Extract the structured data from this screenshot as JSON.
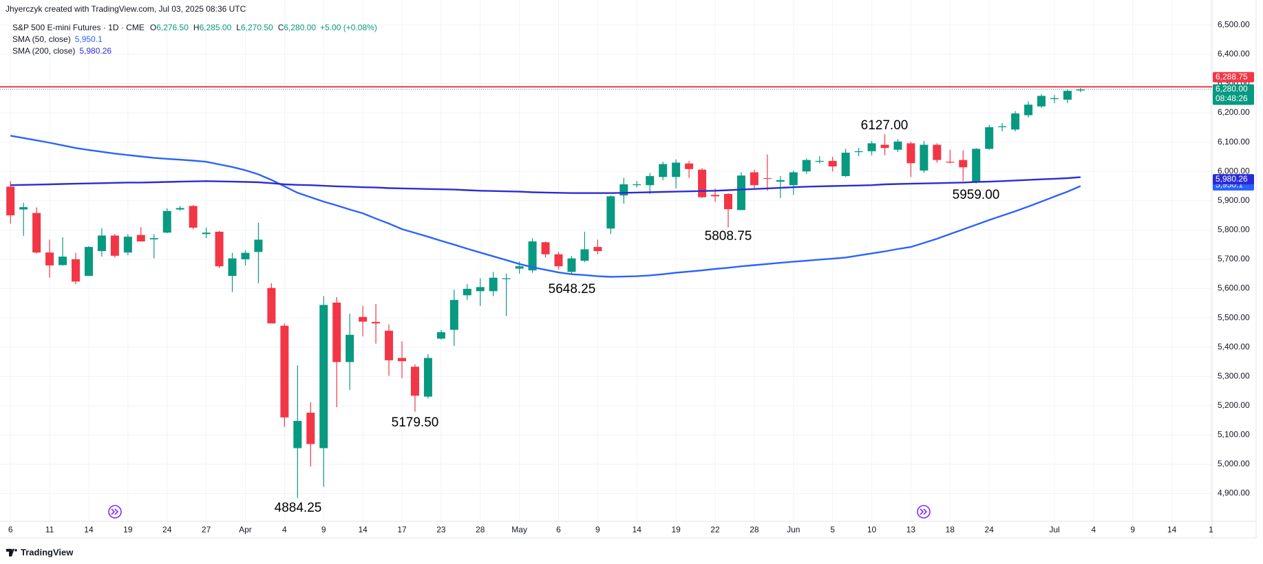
{
  "header": {
    "author": "Jhyerczyk created with TradingView.com, Jul 03, 2025 08:36 UTC"
  },
  "footer": {
    "brand": "TradingView"
  },
  "chart_data": {
    "type": "candlestick",
    "legend": {
      "symbol": "S&P 500 E-mini Futures · 1D · CME",
      "fields": [
        {
          "key": "O",
          "value": "6,276.50"
        },
        {
          "key": "H",
          "value": "6,285.00"
        },
        {
          "key": "L",
          "value": "6,270.50"
        },
        {
          "key": "C",
          "value": "6,280.00"
        }
      ],
      "change": "+5.00 (+0.08%)"
    },
    "up_color": "#089981",
    "down_color": "#f23645",
    "categories": [
      "6",
      null,
      null,
      "11",
      null,
      null,
      "14",
      null,
      null,
      "19",
      null,
      null,
      "24",
      null,
      null,
      "27",
      null,
      null,
      "Apr",
      null,
      null,
      "4",
      null,
      null,
      "9",
      null,
      null,
      "14",
      null,
      null,
      "17",
      null,
      null,
      "23",
      null,
      null,
      "28",
      null,
      null,
      "May",
      null,
      null,
      "6",
      null,
      null,
      "9",
      null,
      null,
      "14",
      null,
      null,
      "19",
      null,
      null,
      "22",
      null,
      null,
      "28",
      null,
      null,
      "Jun",
      null,
      null,
      "5",
      null,
      null,
      "10",
      null,
      null,
      "13",
      null,
      null,
      "18",
      null,
      null,
      "24",
      null,
      null,
      null,
      null,
      "Jul",
      null,
      null,
      "4",
      null,
      null,
      "9",
      null,
      null,
      "14",
      null,
      null,
      "1"
    ],
    "open": [
      5948,
      5870,
      5858,
      5723,
      5680,
      5700,
      5643,
      5728,
      5781,
      5723,
      5783,
      5768,
      5791,
      5870,
      5882,
      5786,
      5794,
      5643,
      5700,
      5725,
      5602,
      5473,
      5055,
      5176,
      5055,
      5552,
      5349,
      5503,
      5486,
      5456,
      5363,
      5333,
      5231,
      5429,
      5459,
      5577,
      5591,
      5591,
      5632,
      5668,
      5662,
      5758,
      5717,
      5657,
      5695,
      5742,
      5805,
      5918,
      5953,
      5953,
      5981,
      5981,
      6027,
      6006,
      5920,
      5923,
      5868,
      5997,
      5977,
      5965,
      5953,
      6000,
      6033,
      6036,
      5984,
      6066,
      6069,
      6091,
      6074,
      6096,
      6003,
      6091,
      6033,
      6039,
      5965,
      6077,
      6151,
      6143,
      6192,
      6222,
      6247,
      6245,
      6276.5,
      null,
      null,
      null,
      null,
      null,
      null,
      null,
      null,
      null,
      null
    ],
    "high": [
      5967,
      5893,
      5877,
      5767,
      5775,
      5722,
      5745,
      5806,
      5786,
      5786,
      5810,
      5786,
      5874,
      5882,
      5885,
      5808,
      5797,
      5722,
      5731,
      5825,
      5618,
      5481,
      5338,
      5212,
      5574,
      5571,
      5514,
      5541,
      5547,
      5478,
      5420,
      5341,
      5376,
      5459,
      5596,
      5615,
      5635,
      5657,
      5651,
      5692,
      5772,
      5761,
      5725,
      5711,
      5794,
      5767,
      5918,
      5978,
      5967,
      5995,
      6033,
      6041,
      6036,
      6011,
      5942,
      5926,
      5997,
      6006,
      6058,
      5984,
      6003,
      6044,
      6052,
      6050,
      6077,
      6080,
      6104,
      6127,
      6110,
      6102,
      6104,
      6096,
      6074,
      6072,
      6080,
      6159,
      6165,
      6206,
      6239,
      6264,
      6261,
      6280,
      6285,
      null,
      null,
      null,
      null,
      null,
      null,
      null,
      null,
      null,
      null
    ],
    "low": [
      5822,
      5780,
      5720,
      5637,
      5678,
      5615,
      5643,
      5709,
      5706,
      5714,
      5761,
      5703,
      5789,
      5866,
      5802,
      5772,
      5670,
      5588,
      5679,
      5618,
      5481,
      5127,
      4884.25,
      4992,
      4923,
      5195,
      5253,
      5437,
      5412,
      5302,
      5294,
      5179.5,
      5225,
      5426,
      5404,
      5561,
      5541,
      5574,
      5506,
      5651,
      5654,
      5706,
      5665,
      5648.25,
      5690,
      5717,
      5786,
      5890,
      5945,
      5923,
      5970,
      5942,
      5978,
      5909,
      5896,
      5808.75,
      5868,
      5937,
      5934,
      5909,
      5920,
      5992,
      6027,
      6000,
      5981,
      6052,
      6055,
      6055,
      6066,
      5981,
      5995,
      6030,
      6027,
      5967,
      5959,
      6074,
      6137,
      6137,
      6184,
      6217,
      6233,
      6233,
      6270.5,
      null,
      null,
      null,
      null,
      null,
      null,
      null,
      null,
      null,
      null
    ],
    "close": [
      5850,
      5878,
      5723,
      5679,
      5709,
      5624,
      5742,
      5781,
      5712,
      5777,
      5761,
      5772,
      5865,
      5875,
      5808,
      5791,
      5676,
      5703,
      5722,
      5767,
      5481,
      5160,
      5148,
      5069,
      5544,
      5349,
      5442,
      5487,
      5481,
      5355,
      5352,
      5234,
      5363,
      5451,
      5561,
      5599,
      5605,
      5637,
      5635,
      5676,
      5761,
      5717,
      5676,
      5703,
      5734,
      5728,
      5915,
      5956,
      5956,
      5984,
      6025,
      6030,
      6008,
      5912,
      5915,
      5871,
      5986,
      5953,
      5975,
      5970,
      5997,
      6039,
      6036,
      6017,
      6064,
      6069,
      6096,
      6080,
      6102,
      6028,
      6091,
      6039,
      6030,
      6014,
      6077,
      6151,
      6154,
      6198,
      6228,
      6258,
      6250,
      6275,
      6280,
      null,
      null,
      null,
      null,
      null,
      null,
      null,
      null,
      null,
      null
    ],
    "series": [
      {
        "name": "SMA (50, close)",
        "color": "#2962ff",
        "last_label": "5,950.1",
        "values": [
          6122,
          6114,
          6106,
          6098,
          6089,
          6080,
          6073,
          6067,
          6061,
          6056,
          6051,
          6046,
          6043,
          6040,
          6037,
          6033,
          6024,
          6015,
          6004,
          5990,
          5971,
          5949,
          5927,
          5912,
          5897,
          5884,
          5870,
          5857,
          5839,
          5822,
          5803,
          5790,
          5777,
          5763,
          5750,
          5736,
          5723,
          5710,
          5697,
          5684,
          5673,
          5664,
          5655,
          5649,
          5646,
          5642,
          5640,
          5641,
          5642,
          5645,
          5649,
          5654,
          5658,
          5662,
          5667,
          5671,
          5676,
          5680,
          5684,
          5688,
          5692,
          5695,
          5699,
          5702,
          5706,
          5713,
          5720,
          5727,
          5735,
          5742,
          5756,
          5770,
          5786,
          5802,
          5818,
          5834,
          5849,
          5864,
          5880,
          5897,
          5914,
          5931,
          5950.1,
          null,
          null,
          null,
          null,
          null,
          null,
          null,
          null,
          null,
          null
        ]
      },
      {
        "name": "SMA (200, close)",
        "color": "#2b2bd6",
        "last_label": "5,980.26",
        "values": [
          5953,
          5954,
          5955,
          5956,
          5957,
          5958,
          5959,
          5960,
          5961,
          5962,
          5962,
          5963,
          5964,
          5965,
          5966,
          5967,
          5966,
          5965,
          5964,
          5963,
          5960,
          5956,
          5954,
          5953,
          5951,
          5949,
          5948,
          5946,
          5945,
          5943,
          5942,
          5941,
          5940,
          5939,
          5938,
          5936,
          5934,
          5933,
          5932,
          5931,
          5929,
          5928,
          5927,
          5926,
          5926,
          5926,
          5926,
          5927,
          5928,
          5929,
          5930,
          5931,
          5932,
          5933,
          5934,
          5936,
          5938,
          5940,
          5942,
          5944,
          5946,
          5948,
          5949,
          5950,
          5951,
          5952,
          5953,
          5956,
          5957,
          5958,
          5959,
          5960,
          5961,
          5962,
          5964,
          5965,
          5967,
          5969,
          5971,
          5973,
          5975,
          5977,
          5980.26,
          null,
          null,
          null,
          null,
          null,
          null,
          null,
          null,
          null,
          null
        ]
      }
    ],
    "horizontal_line": {
      "value": 6288.75,
      "label": "6,288.75",
      "color": "#f23645"
    },
    "last_price": {
      "value": 6280,
      "label": "6,280.00",
      "countdown": "08:48:26"
    },
    "annotations": [
      "6127.00",
      "5959.00",
      "5808.75",
      "5648.25",
      "5179.50",
      "4884.25"
    ],
    "ylim": [
      4805,
      6525
    ],
    "yticks": [
      {
        "value": 4900,
        "label": "4,900.00"
      },
      {
        "value": 5000,
        "label": "5,000.00"
      },
      {
        "value": 5100,
        "label": "5,100.00"
      },
      {
        "value": 5200,
        "label": "5,200.00"
      },
      {
        "value": 5300,
        "label": "5,300.00"
      },
      {
        "value": 5400,
        "label": "5,400.00"
      },
      {
        "value": 5500,
        "label": "5,500.00"
      },
      {
        "value": 5600,
        "label": "5,600.00"
      },
      {
        "value": 5700,
        "label": "5,700.00"
      },
      {
        "value": 5800,
        "label": "5,800.00"
      },
      {
        "value": 5900,
        "label": "5,900.00"
      },
      {
        "value": 6000,
        "label": "6,000.00"
      },
      {
        "value": 6100,
        "label": "6,100.00"
      },
      {
        "value": 6200,
        "label": "6,200.00"
      },
      {
        "value": 6300,
        "label": "6,300.00"
      },
      {
        "value": 6400,
        "label": "6,400.00"
      },
      {
        "value": 6500,
        "label": "6,500.00"
      }
    ],
    "grid": true
  }
}
